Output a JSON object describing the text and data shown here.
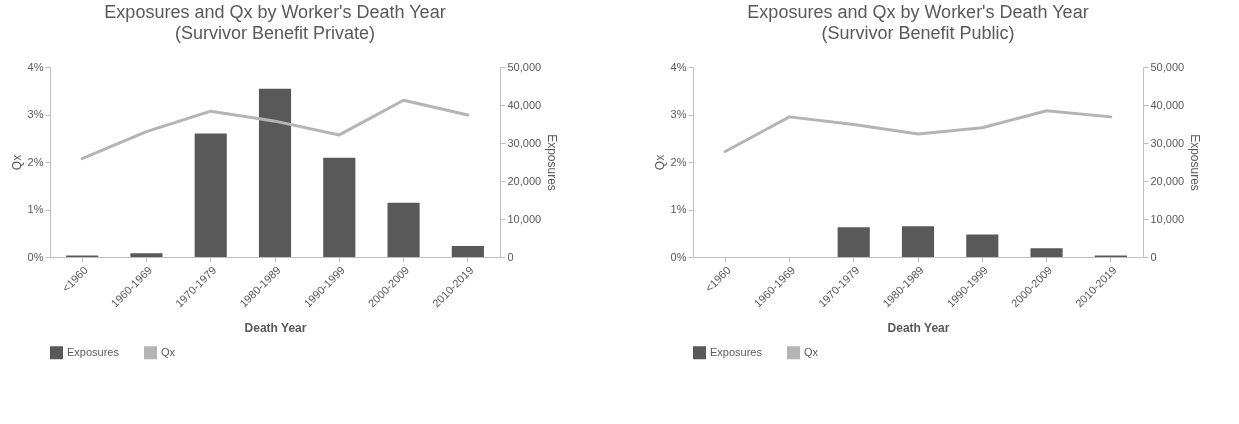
{
  "chart_data": [
    {
      "type": "bar",
      "title": "Exposures and Qx by Worker's Death Year",
      "subtitle": "(Survivor Benefit Private)",
      "xlabel": "Death Year",
      "ylabel": "Qx",
      "y2label": "Exposures",
      "categories": [
        "<1960",
        "1960-1969",
        "1970-1979",
        "1980-1989",
        "1990-1999",
        "2000-2009",
        "2010-2019"
      ],
      "series": [
        {
          "name": "Exposures",
          "axis": "y2",
          "color": "#595959",
          "values": [
            400,
            1000,
            32500,
            44300,
            26100,
            14300,
            2900
          ]
        },
        {
          "name": "Qx",
          "type": "line",
          "color": "#b4b4b4",
          "values": [
            2.07,
            2.64,
            3.07,
            2.86,
            2.57,
            3.3,
            2.99
          ]
        }
      ],
      "ylim": [
        0,
        4
      ],
      "yticks": [
        {
          "value": 0,
          "label": "0%"
        },
        {
          "value": 1,
          "label": "1%"
        },
        {
          "value": 2,
          "label": "2%"
        },
        {
          "value": 3,
          "label": "3%"
        },
        {
          "value": 4,
          "label": "4%"
        }
      ],
      "y2lim": [
        0,
        50000
      ],
      "y2ticks": [
        0,
        {
          "value": 10000,
          "label": "10,000"
        },
        {
          "value": 20000,
          "label": "20,000"
        },
        {
          "value": 30000,
          "label": "30,000"
        },
        {
          "value": 40000,
          "label": "40,000"
        },
        {
          "value": 50000,
          "label": "50,000"
        }
      ],
      "legend": "bottom",
      "grid": false
    },
    {
      "type": "bar",
      "title": "Exposures and Qx by Worker's Death Year",
      "subtitle": "(Survivor Benefit Public)",
      "xlabel": "Death Year",
      "ylabel": "Qx",
      "y2label": "Exposures",
      "categories": [
        "<1960",
        "1960-1969",
        "1970-1979",
        "1980-1989",
        "1990-1999",
        "2000-2009",
        "2010-2019"
      ],
      "series": [
        {
          "name": "Exposures",
          "axis": "y2",
          "color": "#595959",
          "values": [
            null,
            null,
            7800,
            8100,
            5900,
            2300,
            400
          ]
        },
        {
          "name": "Qx",
          "type": "line",
          "color": "#b4b4b4",
          "values": [
            2.22,
            2.95,
            2.79,
            2.59,
            2.72,
            3.08,
            2.95
          ]
        }
      ],
      "ylim": [
        0,
        4
      ],
      "yticks": [
        {
          "value": 0,
          "label": "0%"
        },
        {
          "value": 1,
          "label": "1%"
        },
        {
          "value": 2,
          "label": "2%"
        },
        {
          "value": 3,
          "label": "3%"
        },
        {
          "value": 4,
          "label": "4%"
        }
      ],
      "y2lim": [
        0,
        50000
      ],
      "y2ticks": [
        0,
        {
          "value": 10000,
          "label": "10,000"
        },
        {
          "value": 20000,
          "label": "20,000"
        },
        {
          "value": 30000,
          "label": "30,000"
        },
        {
          "value": 40000,
          "label": "40,000"
        },
        {
          "value": 50000,
          "label": "50,000"
        }
      ],
      "legend": "bottom",
      "grid": false
    }
  ]
}
